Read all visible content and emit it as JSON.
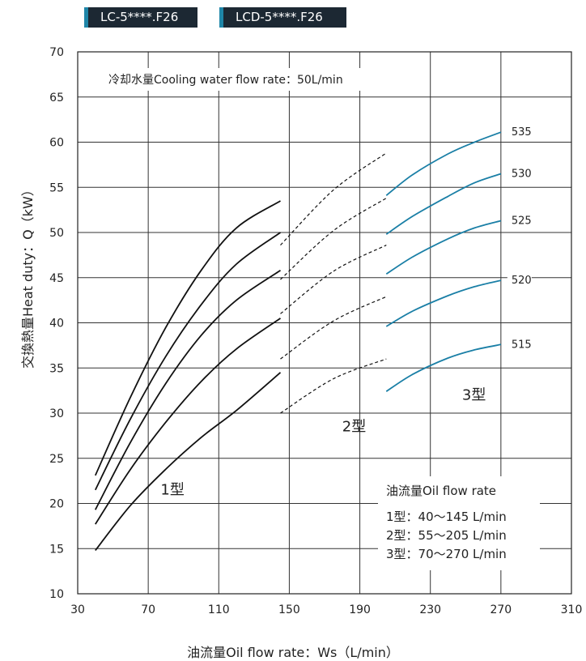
{
  "tabs": [
    {
      "label": "LC-5****.F26"
    },
    {
      "label": "LCD-5****.F26"
    }
  ],
  "chart_data": {
    "type": "line",
    "title": "",
    "xlabel": "油流量Oil flow rate：Ws（L/min）",
    "ylabel": "交換熱量Heat duty：Q（kW）",
    "xlim": [
      30,
      310
    ],
    "ylim": [
      10,
      70
    ],
    "xticks": [
      30,
      70,
      110,
      150,
      190,
      230,
      270,
      310
    ],
    "yticks": [
      10,
      15,
      20,
      25,
      30,
      35,
      40,
      45,
      50,
      55,
      60,
      65,
      70
    ],
    "grid": true,
    "condition_note": "冷却水量Cooling water flow rate：50L/min",
    "type_labels": [
      {
        "text": "1型",
        "x": 77,
        "y": 21
      },
      {
        "text": "2型",
        "x": 180,
        "y": 28
      },
      {
        "text": "3型",
        "x": 248,
        "y": 31.5
      }
    ],
    "oil_flow_box": {
      "title": "油流量Oil flow rate",
      "lines": [
        "1型：40～145 L/min",
        "2型：55～205 L/min",
        "3型：70～270 L/min"
      ]
    },
    "series": [
      {
        "name": "515",
        "segments": [
          {
            "model": "1型",
            "style": "solid",
            "points": [
              [
                40,
                14.8
              ],
              [
                60,
                19.8
              ],
              [
                80,
                23.8
              ],
              [
                100,
                27.3
              ],
              [
                120,
                30.3
              ],
              [
                145,
                34.5
              ]
            ]
          },
          {
            "model": "2型",
            "style": "dashed",
            "points": [
              [
                145,
                30.0
              ],
              [
                175,
                33.8
              ],
              [
                205,
                36.0
              ]
            ]
          },
          {
            "model": "3型",
            "style": "solid",
            "points": [
              [
                205,
                32.4
              ],
              [
                220,
                34.3
              ],
              [
                240,
                36.1
              ],
              [
                255,
                37.0
              ],
              [
                270,
                37.6
              ]
            ]
          }
        ]
      },
      {
        "name": "520",
        "segments": [
          {
            "model": "1型",
            "style": "solid",
            "points": [
              [
                40,
                17.7
              ],
              [
                60,
                23.8
              ],
              [
                80,
                29.0
              ],
              [
                100,
                33.5
              ],
              [
                120,
                37.1
              ],
              [
                145,
                40.5
              ]
            ]
          },
          {
            "model": "2型",
            "style": "dashed",
            "points": [
              [
                145,
                36.0
              ],
              [
                175,
                40.2
              ],
              [
                205,
                42.9
              ]
            ]
          },
          {
            "model": "3型",
            "style": "solid",
            "points": [
              [
                205,
                39.6
              ],
              [
                220,
                41.3
              ],
              [
                240,
                43.0
              ],
              [
                255,
                44.0
              ],
              [
                270,
                44.7
              ]
            ]
          }
        ]
      },
      {
        "name": "525",
        "segments": [
          {
            "model": "1型",
            "style": "solid",
            "points": [
              [
                40,
                19.3
              ],
              [
                60,
                26.8
              ],
              [
                80,
                33.3
              ],
              [
                100,
                38.6
              ],
              [
                120,
                42.5
              ],
              [
                145,
                45.8
              ]
            ]
          },
          {
            "model": "2型",
            "style": "dashed",
            "points": [
              [
                145,
                41.0
              ],
              [
                175,
                45.7
              ],
              [
                205,
                48.6
              ]
            ]
          },
          {
            "model": "3型",
            "style": "solid",
            "points": [
              [
                205,
                45.4
              ],
              [
                220,
                47.3
              ],
              [
                240,
                49.3
              ],
              [
                255,
                50.5
              ],
              [
                270,
                51.3
              ]
            ]
          }
        ]
      },
      {
        "name": "530",
        "segments": [
          {
            "model": "1型",
            "style": "solid",
            "points": [
              [
                40,
                21.5
              ],
              [
                60,
                29.4
              ],
              [
                80,
                36.3
              ],
              [
                100,
                42.0
              ],
              [
                120,
                46.5
              ],
              [
                145,
                50.0
              ]
            ]
          },
          {
            "model": "2型",
            "style": "dashed",
            "points": [
              [
                145,
                44.8
              ],
              [
                175,
                50.2
              ],
              [
                205,
                53.8
              ]
            ]
          },
          {
            "model": "3型",
            "style": "solid",
            "points": [
              [
                205,
                49.8
              ],
              [
                220,
                51.8
              ],
              [
                240,
                54.0
              ],
              [
                255,
                55.5
              ],
              [
                270,
                56.5
              ]
            ]
          }
        ]
      },
      {
        "name": "535",
        "segments": [
          {
            "model": "1型",
            "style": "solid",
            "points": [
              [
                40,
                23.1
              ],
              [
                60,
                31.8
              ],
              [
                80,
                39.5
              ],
              [
                100,
                45.8
              ],
              [
                120,
                50.5
              ],
              [
                145,
                53.5
              ]
            ]
          },
          {
            "model": "2型",
            "style": "dashed",
            "points": [
              [
                145,
                48.6
              ],
              [
                175,
                54.7
              ],
              [
                205,
                58.8
              ]
            ]
          },
          {
            "model": "3型",
            "style": "solid",
            "points": [
              [
                205,
                54.1
              ],
              [
                220,
                56.4
              ],
              [
                240,
                58.7
              ],
              [
                255,
                60.0
              ],
              [
                270,
                61.1
              ]
            ]
          }
        ]
      }
    ],
    "colors": {
      "model_1_2": "#111111",
      "model_3": "#1a7fa6"
    }
  }
}
